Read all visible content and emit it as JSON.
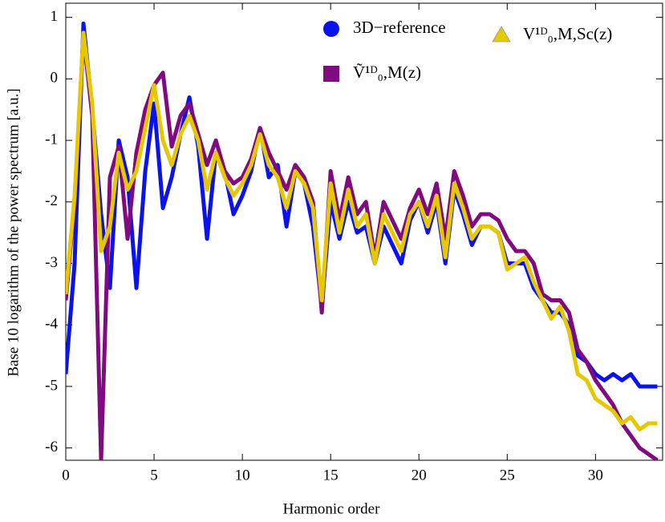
{
  "chart_data": {
    "type": "line",
    "xlabel": "Harmonic order",
    "ylabel": "Base 10 logarithm of the power spectrum [a.u.]",
    "x": [
      0,
      0.5,
      1,
      1.5,
      2,
      2.5,
      3,
      3.5,
      4,
      4.5,
      5,
      5.5,
      6,
      6.5,
      7,
      7.5,
      8,
      8.5,
      9,
      9.5,
      10,
      10.5,
      11,
      11.5,
      12,
      12.5,
      13,
      13.5,
      14,
      14.5,
      15,
      15.5,
      16,
      16.5,
      17,
      17.5,
      18,
      18.5,
      19,
      19.5,
      20,
      20.5,
      21,
      21.5,
      22,
      22.5,
      23,
      23.5,
      24,
      24.5,
      25,
      25.5,
      26,
      26.5,
      27,
      27.5,
      28,
      28.5,
      29,
      29.5,
      30,
      30.5,
      31,
      31.5,
      32,
      32.5,
      33,
      33.5
    ],
    "series": [
      {
        "name": "3D−reference",
        "color": "#0a12f0",
        "marker": "circle",
        "values": [
          -4.8,
          -3.0,
          0.9,
          -0.5,
          -2.2,
          -3.4,
          -1.0,
          -1.6,
          -3.4,
          -1.5,
          -0.4,
          -2.1,
          -1.6,
          -0.9,
          -0.3,
          -1.1,
          -2.6,
          -1.2,
          -1.5,
          -2.2,
          -1.9,
          -1.5,
          -0.8,
          -1.6,
          -1.4,
          -2.4,
          -1.5,
          -1.7,
          -2.4,
          -3.7,
          -2.0,
          -2.6,
          -2.0,
          -2.5,
          -2.4,
          -3.0,
          -2.4,
          -2.7,
          -3.0,
          -2.3,
          -2.0,
          -2.5,
          -2.0,
          -3.0,
          -1.8,
          -2.2,
          -2.7,
          -2.4,
          -2.4,
          -2.5,
          -3.0,
          -3.0,
          -3.0,
          -3.4,
          -3.6,
          -3.8,
          -3.8,
          -4.0,
          -4.5,
          -4.6,
          -4.8,
          -4.9,
          -4.8,
          -4.9,
          -4.8,
          -5.0,
          -5.0,
          -5.0
        ]
      },
      {
        "name": "Ṽ¹ᴰ₀,M(z)",
        "color": "#800a80",
        "marker": "square",
        "values": [
          -3.6,
          -2.0,
          0.7,
          -0.6,
          -6.2,
          -1.6,
          -1.1,
          -2.6,
          -1.2,
          -0.5,
          -0.1,
          0.1,
          -1.1,
          -0.6,
          -0.4,
          -0.9,
          -1.4,
          -1.0,
          -1.5,
          -1.7,
          -1.6,
          -1.3,
          -0.8,
          -1.2,
          -1.5,
          -1.8,
          -1.4,
          -1.6,
          -2.0,
          -3.8,
          -1.5,
          -2.3,
          -1.6,
          -2.2,
          -2.0,
          -2.9,
          -2.0,
          -2.3,
          -2.6,
          -2.1,
          -1.8,
          -2.2,
          -1.7,
          -2.6,
          -1.5,
          -1.9,
          -2.4,
          -2.2,
          -2.2,
          -2.3,
          -2.6,
          -2.8,
          -2.8,
          -3.0,
          -3.5,
          -3.6,
          -3.6,
          -3.8,
          -4.4,
          -4.6,
          -4.9,
          -5.1,
          -5.3,
          -5.6,
          -5.8,
          -6.0,
          -6.1,
          -6.2
        ]
      },
      {
        "name": "V¹ᴰ₀,M,Sc(z)",
        "color": "#e5c800",
        "marker": "triangle",
        "values": [
          -3.5,
          -1.9,
          0.75,
          -0.4,
          -2.8,
          -2.4,
          -1.2,
          -1.8,
          -1.5,
          -0.8,
          -0.1,
          -1.0,
          -1.4,
          -0.9,
          -0.6,
          -1.0,
          -1.8,
          -1.2,
          -1.6,
          -1.9,
          -1.7,
          -1.4,
          -0.9,
          -1.4,
          -1.6,
          -2.1,
          -1.5,
          -1.7,
          -2.1,
          -3.6,
          -1.7,
          -2.5,
          -1.8,
          -2.4,
          -2.2,
          -3.0,
          -2.2,
          -2.5,
          -2.8,
          -2.2,
          -2.0,
          -2.4,
          -1.9,
          -2.9,
          -1.7,
          -2.1,
          -2.6,
          -2.4,
          -2.4,
          -2.5,
          -3.1,
          -3.0,
          -2.9,
          -3.3,
          -3.6,
          -3.9,
          -3.7,
          -4.1,
          -4.8,
          -4.9,
          -5.2,
          -5.3,
          -5.4,
          -5.6,
          -5.5,
          -5.7,
          -5.6,
          -5.6
        ]
      }
    ],
    "xlim": [
      0,
      33.8
    ],
    "ylim": [
      -6.2,
      1.23
    ],
    "xticks": [
      0,
      5,
      10,
      15,
      20,
      25,
      30
    ],
    "yticks": [
      -6,
      -5,
      -4,
      -3,
      -2,
      -1,
      0,
      1
    ]
  }
}
